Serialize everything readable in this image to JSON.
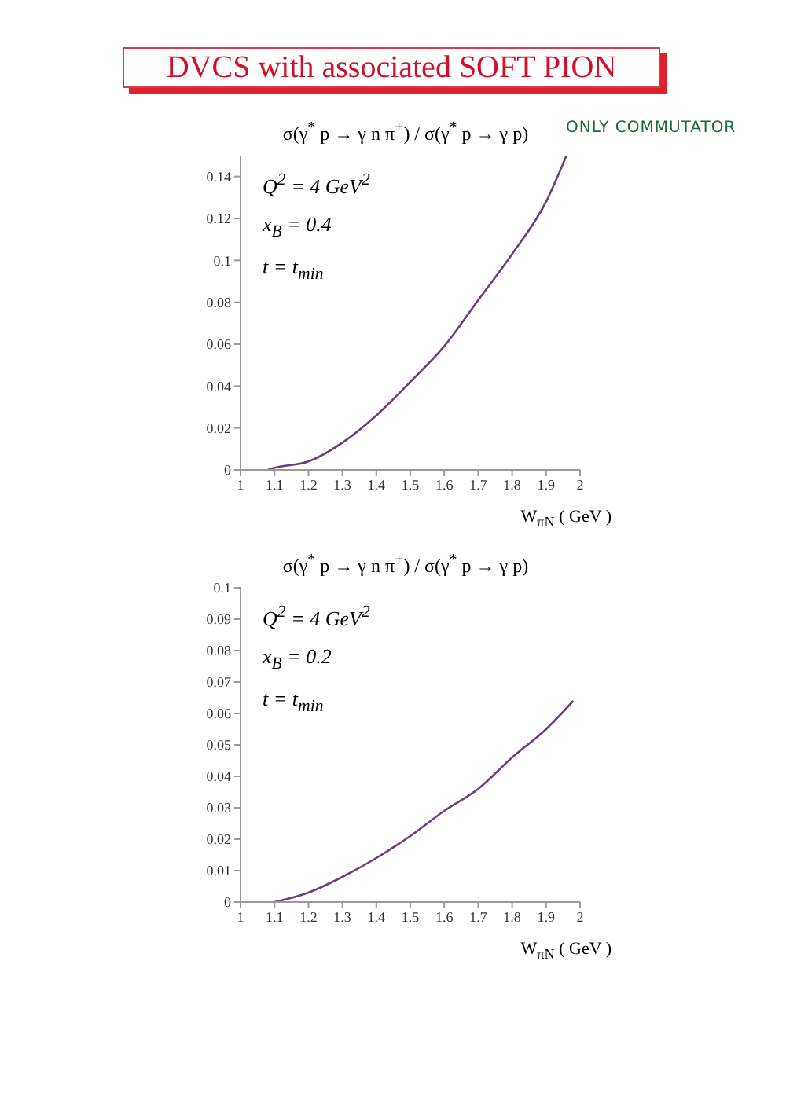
{
  "chart_data": [
    {
      "type": "other",
      "title": "DVCS with associated SOFT PION",
      "annotations": [
        "ONLY COMMUTATOR"
      ]
    },
    {
      "type": "line",
      "title": "σ(γ$^{*}$ p → γ n π$^{+}$) / σ(γ$^{*}$ p → γ p)",
      "xlabel": "W$_{πN}$ ( GeV )",
      "annotations": [
        "Q$^{2}$ = 4 GeV$^{2}$",
        "x$_{B}$ = 0.4",
        "t = t$_{min}$"
      ],
      "x": [
        1.08,
        1.1,
        1.2,
        1.3,
        1.4,
        1.5,
        1.6,
        1.7,
        1.8,
        1.9,
        1.96
      ],
      "series": [
        {
          "color": "#6b3f7a",
          "values": [
            0,
            0.001,
            0.004,
            0.013,
            0.026,
            0.042,
            0.059,
            0.081,
            0.103,
            0.128,
            0.15
          ]
        }
      ],
      "xlim": [
        1,
        2
      ],
      "xticks": [
        1,
        1.1,
        1.2,
        1.3,
        1.4,
        1.5,
        1.6,
        1.7,
        1.8,
        1.9,
        2
      ],
      "ylim": [
        0,
        0.15
      ],
      "yticks": [
        0,
        0.02,
        0.04,
        0.06,
        0.08,
        0.1,
        0.12,
        0.14
      ],
      "marker": "none",
      "line_style": "solid"
    },
    {
      "type": "line",
      "title": "σ(γ$^{*}$ p → γ n π$^{+}$) / σ(γ$^{*}$ p → γ p)",
      "xlabel": "W$_{πN}$ ( GeV )",
      "annotations": [
        "Q$^{2}$ = 4 GeV$^{2}$",
        "x$_{B}$ = 0.2",
        "t = t$_{min}$"
      ],
      "x": [
        1.1,
        1.2,
        1.3,
        1.4,
        1.5,
        1.6,
        1.7,
        1.8,
        1.9,
        1.98
      ],
      "series": [
        {
          "color": "#6b3f7a",
          "values": [
            0,
            0.003,
            0.008,
            0.014,
            0.021,
            0.029,
            0.036,
            0.046,
            0.055,
            0.064
          ]
        }
      ],
      "xlim": [
        1,
        2
      ],
      "xticks": [
        1,
        1.1,
        1.2,
        1.3,
        1.4,
        1.5,
        1.6,
        1.7,
        1.8,
        1.9,
        2
      ],
      "ylim": [
        0,
        0.1
      ],
      "yticks": [
        0,
        0.01,
        0.02,
        0.03,
        0.04,
        0.05,
        0.06,
        0.07,
        0.08,
        0.09,
        0.1
      ],
      "marker": "none",
      "line_style": "solid"
    }
  ]
}
